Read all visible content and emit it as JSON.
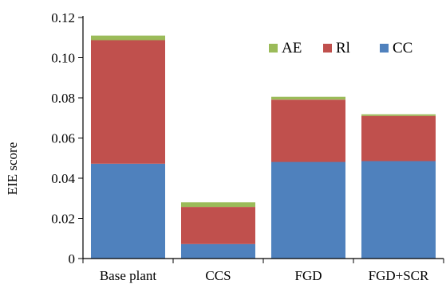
{
  "chart_data": {
    "type": "bar",
    "stacked": true,
    "categories": [
      "Base plant",
      "CCS",
      "FGD",
      "FGD+SCR"
    ],
    "series": [
      {
        "name": "CC",
        "color": "#4f81bd",
        "values": [
          0.0472,
          0.0072,
          0.0481,
          0.0485
        ]
      },
      {
        "name": "RI",
        "color": "#c0504d",
        "values": [
          0.0615,
          0.0185,
          0.031,
          0.0225
        ]
      },
      {
        "name": "AE",
        "color": "#9bbb59",
        "values": [
          0.0023,
          0.0023,
          0.0014,
          0.0008
        ]
      }
    ],
    "legend_order": [
      "AE",
      "RI",
      "CC"
    ],
    "legend_labels": {
      "AE": "AE",
      "RI": "Rl",
      "CC": "CC"
    },
    "ylabel": "EIE score",
    "xlabel": "",
    "title": "",
    "ylim": [
      0,
      0.12
    ],
    "yticks": [
      0,
      0.02,
      0.04,
      0.06,
      0.08,
      0.1,
      0.12
    ],
    "ytick_labels": [
      "0",
      "0.02",
      "0.04",
      "0.06",
      "0.08",
      "0.10",
      "0.12"
    ],
    "legend_position": "top-right",
    "grid": false
  }
}
